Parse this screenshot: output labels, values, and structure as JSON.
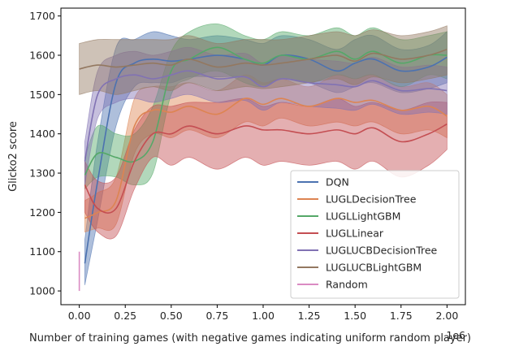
{
  "chart_data": {
    "type": "line",
    "title": "",
    "xlabel": "Number of training games (with negative games indicating uniform random player)",
    "ylabel": "Glicko2 score",
    "x_offset_label": "1e6",
    "xlim": [
      -0.1,
      2.1
    ],
    "ylim": [
      965,
      1720
    ],
    "x_ticks": [
      0.0,
      0.25,
      0.5,
      0.75,
      1.0,
      1.25,
      1.5,
      1.75,
      2.0
    ],
    "x_tick_labels": [
      "0.00",
      "0.25",
      "0.50",
      "0.75",
      "1.00",
      "1.25",
      "1.50",
      "1.75",
      "2.00"
    ],
    "y_ticks": [
      1000,
      1100,
      1200,
      1300,
      1400,
      1500,
      1600,
      1700
    ],
    "y_tick_labels": [
      "1000",
      "1100",
      "1200",
      "1300",
      "1400",
      "1500",
      "1600",
      "1700"
    ],
    "grid": false,
    "legend_position": "lower-right",
    "x": [
      0.0,
      0.25,
      0.5,
      0.75,
      1.0,
      1.25,
      1.5,
      1.75,
      2.0
    ],
    "series": [
      {
        "name": "DQN",
        "color": "#4c72b0",
        "x": [
          0.03,
          0.1,
          0.2,
          0.3,
          0.4,
          0.5,
          0.6,
          0.75,
          0.9,
          1.0,
          1.1,
          1.25,
          1.4,
          1.5,
          1.6,
          1.75,
          1.9,
          2.0
        ],
        "mean": [
          1070,
          1280,
          1530,
          1580,
          1590,
          1585,
          1590,
          1600,
          1590,
          1575,
          1600,
          1590,
          1560,
          1580,
          1590,
          1560,
          1570,
          1595
        ],
        "lower": [
          1015,
          1180,
          1420,
          1520,
          1530,
          1530,
          1545,
          1545,
          1545,
          1525,
          1540,
          1530,
          1505,
          1520,
          1530,
          1505,
          1515,
          1530
        ],
        "upper": [
          1130,
          1380,
          1620,
          1640,
          1660,
          1650,
          1640,
          1650,
          1640,
          1630,
          1650,
          1640,
          1615,
          1640,
          1650,
          1615,
          1625,
          1660
        ]
      },
      {
        "name": "LUGLDecisionTree",
        "color": "#dd8452",
        "x": [
          0.03,
          0.1,
          0.2,
          0.3,
          0.4,
          0.5,
          0.6,
          0.75,
          0.9,
          1.0,
          1.1,
          1.25,
          1.4,
          1.5,
          1.6,
          1.75,
          1.9,
          2.0
        ],
        "mean": [
          1185,
          1200,
          1230,
          1420,
          1460,
          1455,
          1470,
          1450,
          1490,
          1475,
          1490,
          1470,
          1490,
          1480,
          1485,
          1460,
          1470,
          1445
        ],
        "lower": [
          1150,
          1160,
          1170,
          1350,
          1400,
          1390,
          1410,
          1390,
          1430,
          1420,
          1440,
          1420,
          1430,
          1420,
          1430,
          1400,
          1410,
          1390
        ],
        "upper": [
          1230,
          1250,
          1290,
          1490,
          1520,
          1520,
          1530,
          1510,
          1550,
          1530,
          1540,
          1520,
          1550,
          1540,
          1550,
          1520,
          1530,
          1500
        ]
      },
      {
        "name": "LUGLLightGBM",
        "color": "#55a868",
        "x": [
          0.03,
          0.1,
          0.2,
          0.3,
          0.4,
          0.5,
          0.6,
          0.75,
          0.9,
          1.0,
          1.1,
          1.25,
          1.4,
          1.5,
          1.6,
          1.75,
          1.9,
          2.0
        ],
        "mean": [
          1295,
          1350,
          1340,
          1330,
          1380,
          1560,
          1590,
          1620,
          1590,
          1580,
          1600,
          1590,
          1610,
          1590,
          1610,
          1580,
          1600,
          1600
        ],
        "lower": [
          1260,
          1290,
          1290,
          1270,
          1300,
          1500,
          1540,
          1560,
          1530,
          1520,
          1540,
          1530,
          1550,
          1540,
          1550,
          1520,
          1550,
          1540
        ],
        "upper": [
          1340,
          1420,
          1400,
          1400,
          1470,
          1610,
          1660,
          1680,
          1650,
          1640,
          1660,
          1650,
          1670,
          1650,
          1670,
          1640,
          1650,
          1660
        ]
      },
      {
        "name": "LUGLLinear",
        "color": "#c44e52",
        "x": [
          0.03,
          0.1,
          0.2,
          0.3,
          0.4,
          0.5,
          0.6,
          0.75,
          0.9,
          1.0,
          1.1,
          1.25,
          1.4,
          1.5,
          1.6,
          1.75,
          1.9,
          2.0
        ],
        "mean": [
          1270,
          1210,
          1210,
          1330,
          1400,
          1400,
          1420,
          1400,
          1420,
          1410,
          1410,
          1400,
          1410,
          1400,
          1415,
          1380,
          1400,
          1425
        ],
        "lower": [
          1200,
          1150,
          1140,
          1260,
          1340,
          1320,
          1340,
          1310,
          1340,
          1320,
          1330,
          1320,
          1330,
          1310,
          1330,
          1290,
          1320,
          1360
        ],
        "upper": [
          1330,
          1280,
          1290,
          1410,
          1470,
          1470,
          1480,
          1480,
          1490,
          1470,
          1480,
          1470,
          1490,
          1470,
          1480,
          1460,
          1480,
          1480
        ]
      },
      {
        "name": "LUGLUCBDecisionTree",
        "color": "#8172b3",
        "x": [
          0.03,
          0.1,
          0.2,
          0.3,
          0.4,
          0.5,
          0.6,
          0.75,
          0.9,
          1.0,
          1.1,
          1.25,
          1.4,
          1.5,
          1.6,
          1.75,
          1.9,
          2.0
        ],
        "mean": [
          1330,
          1500,
          1540,
          1550,
          1540,
          1550,
          1560,
          1540,
          1545,
          1520,
          1540,
          1530,
          1525,
          1520,
          1535,
          1510,
          1515,
          1510
        ],
        "lower": [
          1270,
          1440,
          1480,
          1490,
          1480,
          1490,
          1500,
          1480,
          1485,
          1460,
          1480,
          1470,
          1465,
          1460,
          1475,
          1450,
          1455,
          1450
        ],
        "upper": [
          1380,
          1560,
          1600,
          1610,
          1600,
          1610,
          1620,
          1600,
          1605,
          1580,
          1600,
          1590,
          1585,
          1580,
          1595,
          1570,
          1575,
          1570
        ]
      },
      {
        "name": "LUGLUCBLightGBM",
        "color": "#937860",
        "x": [
          0.0,
          0.1,
          0.2,
          0.3,
          0.4,
          0.5,
          0.6,
          0.75,
          0.9,
          1.0,
          1.1,
          1.25,
          1.4,
          1.5,
          1.6,
          1.75,
          1.9,
          2.0
        ],
        "mean": [
          1565,
          1575,
          1570,
          1575,
          1580,
          1575,
          1590,
          1570,
          1580,
          1575,
          1580,
          1590,
          1600,
          1585,
          1605,
          1590,
          1600,
          1615
        ],
        "lower": [
          1500,
          1510,
          1500,
          1510,
          1520,
          1510,
          1530,
          1510,
          1520,
          1515,
          1520,
          1530,
          1540,
          1525,
          1545,
          1530,
          1540,
          1550
        ],
        "upper": [
          1630,
          1640,
          1640,
          1640,
          1640,
          1640,
          1650,
          1630,
          1640,
          1640,
          1640,
          1650,
          1660,
          1650,
          1665,
          1650,
          1660,
          1675
        ]
      },
      {
        "name": "Random",
        "color": "#da8bc3",
        "x": [
          0.0,
          0.0
        ],
        "mean": [
          1000,
          1100
        ],
        "lower": [
          1000,
          1100
        ],
        "upper": [
          1000,
          1100
        ]
      }
    ]
  }
}
